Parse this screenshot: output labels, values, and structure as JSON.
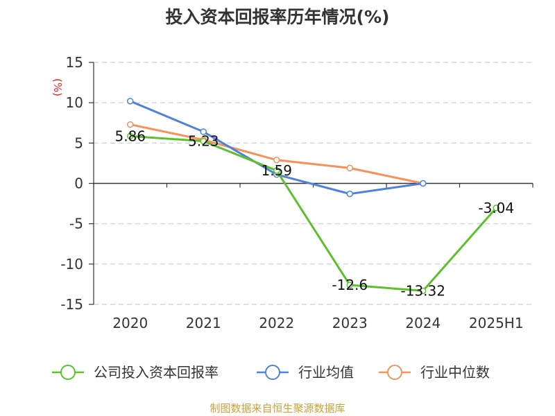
{
  "chart_data": {
    "type": "line",
    "title": "投入资本回报率历年情况(%)",
    "ylabel": "(%)",
    "categories": [
      "2020",
      "2021",
      "2022",
      "2023",
      "2024",
      "2025H1"
    ],
    "yticks": [
      15,
      10,
      5,
      0,
      -5,
      -10,
      -15
    ],
    "ylim": [
      -15,
      15
    ],
    "grid": true,
    "legend_position": "bottom",
    "series": [
      {
        "name": "公司投入资本回报率",
        "color": "#5cc02a",
        "values": [
          5.86,
          5.23,
          1.59,
          -12.6,
          -13.32,
          -3.04
        ],
        "labels": [
          "5.86",
          "5.23",
          "1.59",
          "-12.6",
          "-13.32",
          "-3.04"
        ]
      },
      {
        "name": "行业均值",
        "color": "#4e80dc",
        "values": [
          10.2,
          6.4,
          1.1,
          -1.3,
          0.0,
          null
        ]
      },
      {
        "name": "行业中位数",
        "color": "#f4925a",
        "values": [
          7.3,
          5.4,
          2.9,
          1.9,
          0.0,
          null
        ]
      }
    ]
  },
  "source": "制图数据来自恒生聚源数据库"
}
